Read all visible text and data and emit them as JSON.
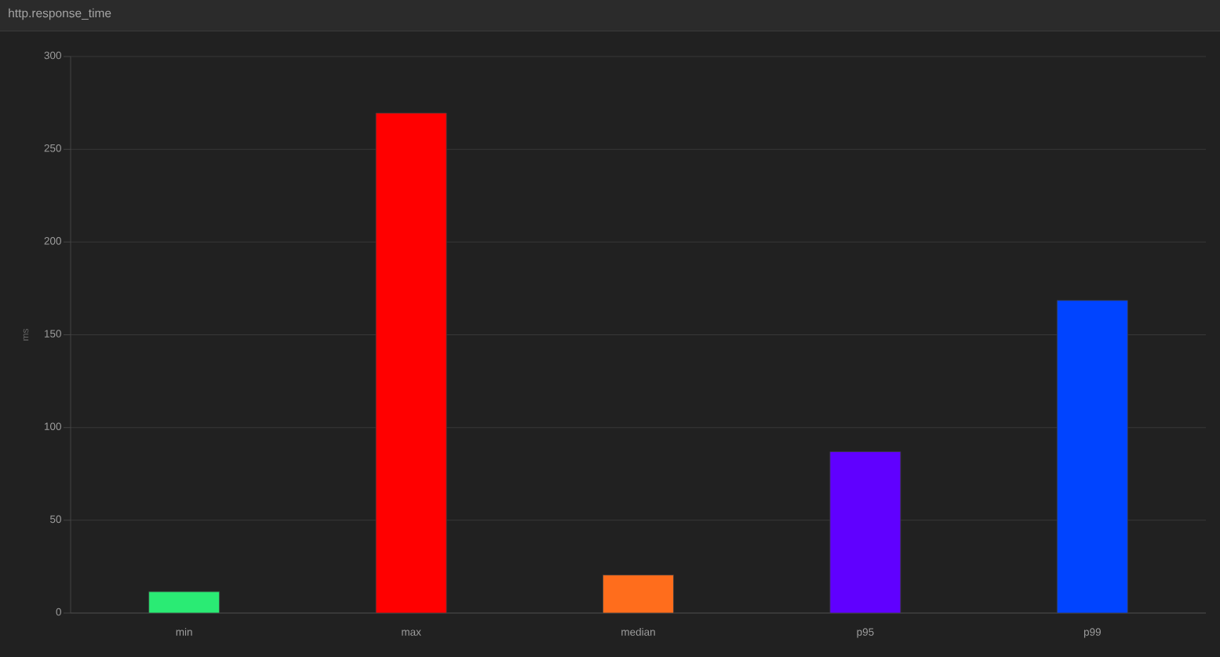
{
  "chart_data": {
    "type": "bar",
    "title": "http.response_time",
    "ylabel": "ms",
    "categories": [
      "min",
      "max",
      "median",
      "p95",
      "p99"
    ],
    "values": [
      11.5,
      269.5,
      20.5,
      87,
      168.5
    ],
    "colors": [
      "#2aeb74",
      "#ff0000",
      "#ff6d1c",
      "#6000ff",
      "#0044ff"
    ],
    "ylim": [
      0,
      300
    ],
    "yticks": [
      0,
      50,
      100,
      150,
      200,
      250,
      300
    ],
    "grid": "y"
  }
}
